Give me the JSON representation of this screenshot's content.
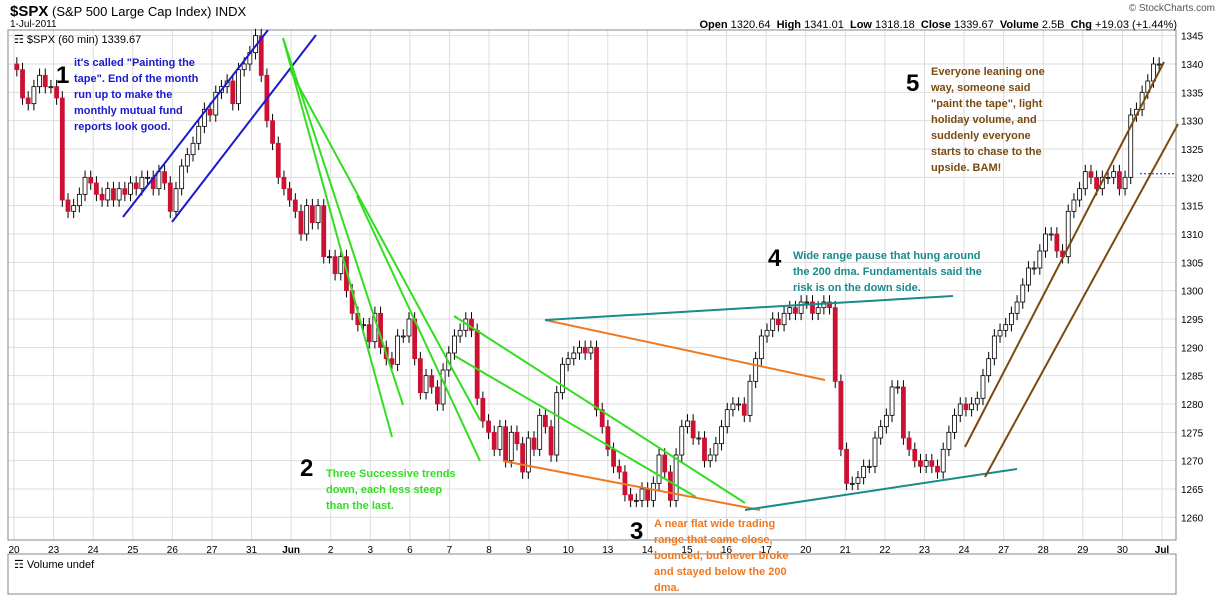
{
  "header": {
    "symbol": "$SPX",
    "name": "(S&P 500 Large Cap Index)",
    "exchange": "INDX",
    "date": "1-Jul-2011",
    "credit": "© StockCharts.com",
    "open_label": "Open",
    "open": "1320.64",
    "high_label": "High",
    "high": "1341.01",
    "low_label": "Low",
    "low": "1318.18",
    "close_label": "Close",
    "close": "1339.67",
    "volume_label": "Volume",
    "volume": "2.5B",
    "chg_label": "Chg",
    "chg": "+19.03 (+1.44%)"
  },
  "legend": "$SPX (60 min) 1339.67",
  "volume_panel": "Volume undef",
  "annotations": [
    {
      "num": "1",
      "text": "it's called \"Painting the tape\". End of the month run up to make the monthly mutual fund reports look good.",
      "color": "#1a1acc"
    },
    {
      "num": "2",
      "text": "Three Successive trends down, each less steep than the last.",
      "color": "#33dd22"
    },
    {
      "num": "3",
      "text": "A near flat wide trading range that came close, bounced, but never broke and stayed below  the 200 dma.",
      "color": "#f07820"
    },
    {
      "num": "4",
      "text": "Wide range pause that hung around the 200 dma. Fundamentals said the risk is on the down side.",
      "color": "#1a8a8a"
    },
    {
      "num": "5",
      "text": "Everyone leaning one way,  someone said \"paint the tape\", light holiday volume, and suddenly everyone starts to chase to the upside. BAM!",
      "color": "#7a4a10"
    }
  ],
  "colors": {
    "up": "#ffffff",
    "down": "#cc1133",
    "grid": "#dddddd",
    "blue": "#1a1acc",
    "green": "#33dd22",
    "orange": "#f07820",
    "teal": "#1a8a8a",
    "brown": "#7a4a10"
  },
  "chart_data": {
    "type": "candlestick",
    "ylim": [
      1256,
      1346
    ],
    "yticks": [
      1260,
      1265,
      1270,
      1275,
      1280,
      1285,
      1290,
      1295,
      1300,
      1305,
      1310,
      1315,
      1320,
      1325,
      1330,
      1335,
      1340,
      1345
    ],
    "xticks": [
      "20",
      "23",
      "24",
      "25",
      "26",
      "27",
      "31",
      "Jun",
      "2",
      "3",
      "6",
      "7",
      "8",
      "9",
      "10",
      "13",
      "14",
      "15",
      "16",
      "17",
      "20",
      "21",
      "22",
      "23",
      "24",
      "27",
      "28",
      "29",
      "30",
      "Jul"
    ],
    "grid": true,
    "reference_level": 1320.64,
    "closes": [
      1339,
      1334,
      1333,
      1336,
      1338,
      1336,
      1336,
      1334,
      1316,
      1314,
      1315,
      1317,
      1320,
      1319,
      1317,
      1316,
      1318,
      1316,
      1318,
      1317,
      1319,
      1318,
      1320,
      1320,
      1318,
      1321,
      1319,
      1314,
      1318,
      1322,
      1324,
      1326,
      1329,
      1332,
      1331,
      1335,
      1336,
      1337,
      1333,
      1339,
      1340,
      1342,
      1345,
      1338,
      1330,
      1326,
      1320,
      1318,
      1316,
      1314,
      1310,
      1315,
      1312,
      1315,
      1306,
      1306,
      1303,
      1306,
      1300,
      1296,
      1294,
      1294,
      1291,
      1296,
      1290,
      1288,
      1287,
      1292,
      1292,
      1295,
      1288,
      1282,
      1285,
      1283,
      1280,
      1286,
      1289,
      1292,
      1293,
      1295,
      1293,
      1281,
      1277,
      1275,
      1272,
      1276,
      1270,
      1275,
      1273,
      1268,
      1274,
      1272,
      1278,
      1276,
      1271,
      1282,
      1287,
      1288,
      1289,
      1290,
      1289,
      1290,
      1279,
      1276,
      1272,
      1269,
      1268,
      1264,
      1263,
      1263,
      1265,
      1263,
      1266,
      1271,
      1268,
      1263,
      1271,
      1276,
      1277,
      1274,
      1274,
      1270,
      1271,
      1273,
      1276,
      1279,
      1280,
      1280,
      1278,
      1284,
      1288,
      1292,
      1293,
      1295,
      1294,
      1296,
      1297,
      1296,
      1298,
      1298,
      1296,
      1297,
      1298,
      1297,
      1284,
      1272,
      1266,
      1266,
      1267,
      1269,
      1269,
      1274,
      1276,
      1278,
      1283,
      1283,
      1274,
      1272,
      1270,
      1269,
      1270,
      1269,
      1268,
      1272,
      1275,
      1278,
      1280,
      1279,
      1280,
      1281,
      1285,
      1288,
      1292,
      1293,
      1294,
      1296,
      1298,
      1301,
      1304,
      1304,
      1307,
      1310,
      1310,
      1307,
      1306,
      1314,
      1316,
      1318,
      1321,
      1320,
      1318,
      1320,
      1320,
      1321,
      1318,
      1320,
      1331,
      1332,
      1335,
      1337,
      1340,
      1340
    ]
  }
}
